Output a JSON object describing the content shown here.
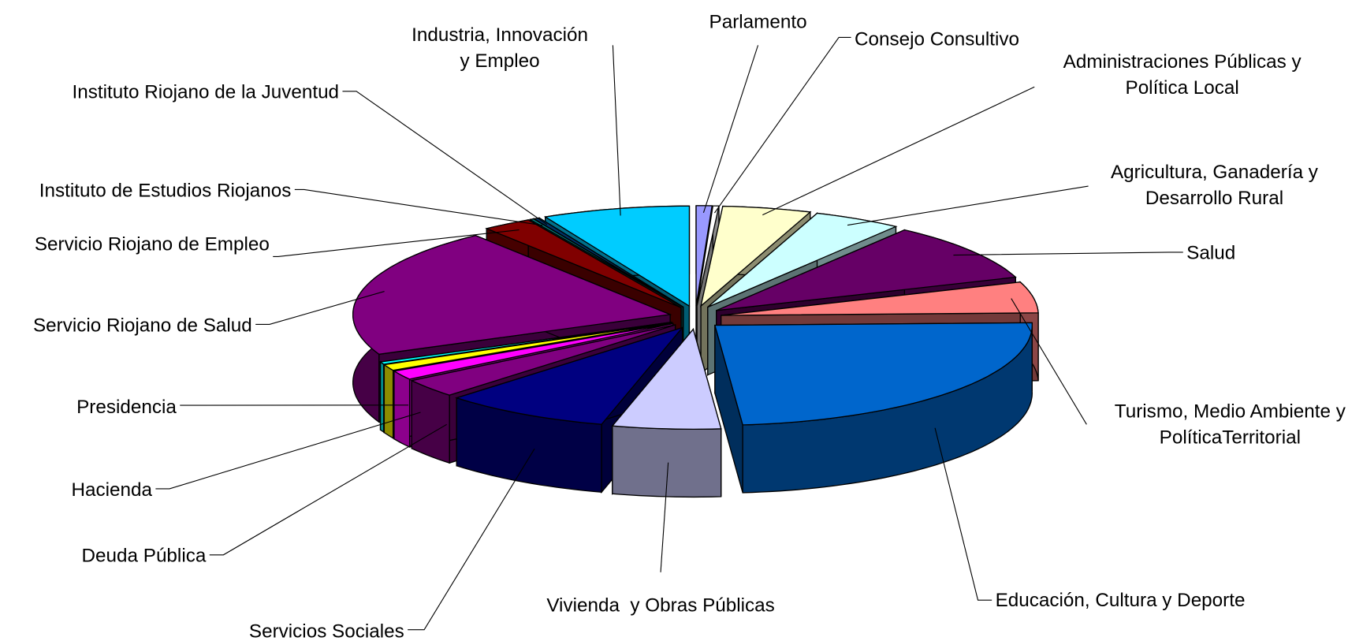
{
  "chart_data": {
    "type": "pie3d",
    "categories": [
      "Parlamento",
      "Consejo Consultivo",
      "Administraciones Públicas y\nPolítica Local",
      "Agricultura, Ganadería y\nDesarrollo Rural",
      "Salud",
      "Turismo, Medio Ambiente y\nPolíticaTerritorial",
      "Educación, Cultura y Deporte",
      "Vivienda  y Obras Públicas",
      "Servicios Sociales",
      "Deuda Pública",
      "Hacienda",
      "Presidencia",
      null,
      "Servicio Riojano de Salud",
      "Servicio Riojano de Empleo",
      "Instituto de Estudios Riojanos",
      "Instituto Riojano de la Juventud",
      "Industria, Innovación\ny Empleo"
    ],
    "values": [
      0.8,
      0.3,
      4.5,
      4.5,
      9.5,
      5,
      24,
      5.5,
      8.5,
      3,
      1.5,
      1,
      0.4,
      21,
      2.5,
      0.2,
      0.3,
      7.5
    ],
    "colors": [
      "#9999ff",
      "#ffffff",
      "#ffffcc",
      "#ccffff",
      "#660066",
      "#ff8080",
      "#0066cc",
      "#ccccff",
      "#000080",
      "#800080",
      "#ff00ff",
      "#ffff00",
      "#00ffff",
      "#800080",
      "#800000",
      "#008080",
      "#003366",
      "#00ccff"
    ]
  }
}
